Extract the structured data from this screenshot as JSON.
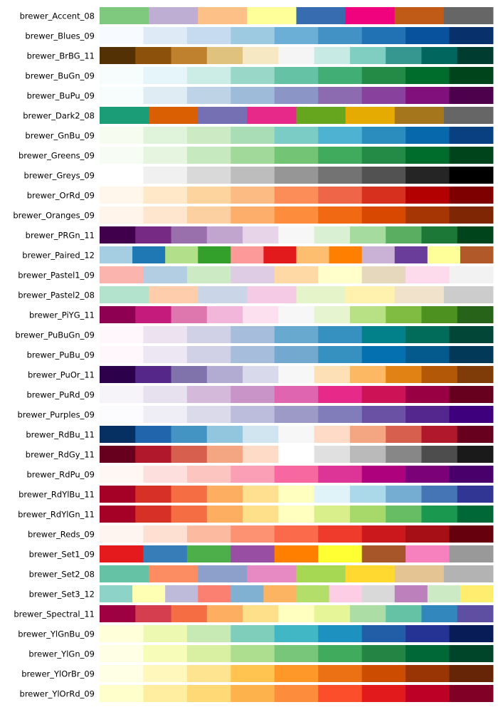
{
  "palettes": [
    {
      "name": "brewer_Accent_08",
      "colors": [
        "#7fc97f",
        "#beaed4",
        "#fdc086",
        "#ffff99",
        "#386cb0",
        "#f0027f",
        "#bf5b17",
        "#666666"
      ]
    },
    {
      "name": "brewer_Blues_09",
      "colors": [
        "#f7fbff",
        "#deebf7",
        "#c6dbef",
        "#9ecae1",
        "#6baed6",
        "#4292c6",
        "#2171b5",
        "#08519c",
        "#08306b"
      ]
    },
    {
      "name": "brewer_BrBG_11",
      "colors": [
        "#543005",
        "#8c510a",
        "#bf812d",
        "#dfc27d",
        "#f6e8c3",
        "#f5f5f5",
        "#c7eae5",
        "#80cdc1",
        "#35978f",
        "#01665e",
        "#003c30"
      ]
    },
    {
      "name": "brewer_BuGn_09",
      "colors": [
        "#f7fcfd",
        "#e5f5f9",
        "#ccece6",
        "#99d8c9",
        "#66c2a4",
        "#41ae76",
        "#238b45",
        "#006d2c",
        "#00441b"
      ]
    },
    {
      "name": "brewer_BuPu_09",
      "colors": [
        "#f7fcfd",
        "#e0ecf4",
        "#bfd3e6",
        "#9ebcda",
        "#8c96c6",
        "#8c6bb1",
        "#88419d",
        "#810f7c",
        "#4d004b"
      ]
    },
    {
      "name": "brewer_Dark2_08",
      "colors": [
        "#1b9e77",
        "#d95f02",
        "#7570b3",
        "#e7298a",
        "#66a61e",
        "#e6ab02",
        "#a6761d",
        "#666666"
      ]
    },
    {
      "name": "brewer_GnBu_09",
      "colors": [
        "#f7fcf0",
        "#e0f3db",
        "#ccebc5",
        "#a8ddb5",
        "#7bccc4",
        "#4eb3d3",
        "#2b8cbe",
        "#0868ac",
        "#084081"
      ]
    },
    {
      "name": "brewer_Greens_09",
      "colors": [
        "#f7fcf5",
        "#e5f5e0",
        "#c7e9c0",
        "#a1d99b",
        "#74c476",
        "#41ab5d",
        "#238b45",
        "#006d2c",
        "#00441b"
      ]
    },
    {
      "name": "brewer_Greys_09",
      "colors": [
        "#ffffff",
        "#f0f0f0",
        "#d9d9d9",
        "#bdbdbd",
        "#969696",
        "#737373",
        "#525252",
        "#252525",
        "#000000"
      ]
    },
    {
      "name": "brewer_OrRd_09",
      "colors": [
        "#fff7ec",
        "#fee8c8",
        "#fdd49e",
        "#fdbb84",
        "#fc8d59",
        "#ef6548",
        "#d7301f",
        "#b30000",
        "#7f0000"
      ]
    },
    {
      "name": "brewer_Oranges_09",
      "colors": [
        "#fff5eb",
        "#fee6ce",
        "#fdd0a2",
        "#fdae6b",
        "#fd8d3c",
        "#f16913",
        "#d94801",
        "#a63603",
        "#7f2704"
      ]
    },
    {
      "name": "brewer_PRGn_11",
      "colors": [
        "#40004b",
        "#762a83",
        "#9970ab",
        "#c2a5cf",
        "#e7d4e8",
        "#f7f7f7",
        "#d9f0d3",
        "#a6dba0",
        "#5aae61",
        "#1b7837",
        "#00441b"
      ]
    },
    {
      "name": "brewer_Paired_12",
      "colors": [
        "#a6cee3",
        "#1f78b4",
        "#b2df8a",
        "#33a02c",
        "#fb9a99",
        "#e31a1c",
        "#fdbf6f",
        "#ff7f00",
        "#cab2d6",
        "#6a3d9a",
        "#ffff99",
        "#b15928"
      ]
    },
    {
      "name": "brewer_Pastel1_09",
      "colors": [
        "#fbb4ae",
        "#b3cde3",
        "#ccebc5",
        "#decbe4",
        "#fed9a6",
        "#ffffcc",
        "#e5d8bd",
        "#fddaec",
        "#f2f2f2"
      ]
    },
    {
      "name": "brewer_Pastel2_08",
      "colors": [
        "#b3e2cd",
        "#fdcdac",
        "#cbd5e8",
        "#f4cae4",
        "#e6f5c9",
        "#fff2ae",
        "#f1e2cc",
        "#cccccc"
      ]
    },
    {
      "name": "brewer_PiYG_11",
      "colors": [
        "#8e0152",
        "#c51b7d",
        "#de77ae",
        "#f1b6da",
        "#fde0ef",
        "#f7f7f7",
        "#e6f5d0",
        "#b8e186",
        "#7fbc41",
        "#4d9221",
        "#276419"
      ]
    },
    {
      "name": "brewer_PuBuGn_09",
      "colors": [
        "#fff7fb",
        "#ece2f0",
        "#d0d1e6",
        "#a6bddb",
        "#67a9cf",
        "#3690c0",
        "#02818a",
        "#016c59",
        "#014636"
      ]
    },
    {
      "name": "brewer_PuBu_09",
      "colors": [
        "#fff7fb",
        "#ece7f2",
        "#d0d1e6",
        "#a6bddb",
        "#74a9cf",
        "#3690c0",
        "#0570b0",
        "#045a8d",
        "#023858"
      ]
    },
    {
      "name": "brewer_PuOr_11",
      "colors": [
        "#2d004b",
        "#542788",
        "#8073ac",
        "#b2abd2",
        "#d8daeb",
        "#f7f7f7",
        "#fee0b6",
        "#fdb863",
        "#e08214",
        "#b35806",
        "#7f3b08"
      ]
    },
    {
      "name": "brewer_PuRd_09",
      "colors": [
        "#f7f4f9",
        "#e7e1ef",
        "#d4b9da",
        "#c994c7",
        "#df65b0",
        "#e7298a",
        "#ce1256",
        "#980043",
        "#67001f"
      ]
    },
    {
      "name": "brewer_Purples_09",
      "colors": [
        "#fcfbfd",
        "#efedf5",
        "#dadaeb",
        "#bcbddc",
        "#9e9ac8",
        "#807dba",
        "#6a51a3",
        "#54278f",
        "#3f007d"
      ]
    },
    {
      "name": "brewer_RdBu_11",
      "colors": [
        "#053061",
        "#2166ac",
        "#4393c3",
        "#92c5de",
        "#d1e5f0",
        "#f7f7f7",
        "#fddbc7",
        "#f4a582",
        "#d6604d",
        "#b2182b",
        "#67001f"
      ]
    },
    {
      "name": "brewer_RdGy_11",
      "colors": [
        "#67001f",
        "#b2182b",
        "#d6604d",
        "#f4a582",
        "#fddbc7",
        "#ffffff",
        "#e0e0e0",
        "#bababa",
        "#878787",
        "#4d4d4d",
        "#1a1a1a"
      ]
    },
    {
      "name": "brewer_RdPu_09",
      "colors": [
        "#fff7f3",
        "#fde0dd",
        "#fcc5c0",
        "#fa9fb5",
        "#f768a1",
        "#dd3497",
        "#ae017e",
        "#7a0177",
        "#49006a"
      ]
    },
    {
      "name": "brewer_RdYlBu_11",
      "colors": [
        "#a50026",
        "#d73027",
        "#f46d43",
        "#fdae61",
        "#fee090",
        "#ffffbf",
        "#e0f3f8",
        "#abd9e9",
        "#74add1",
        "#4575b4",
        "#313695"
      ]
    },
    {
      "name": "brewer_RdYlGn_11",
      "colors": [
        "#a50026",
        "#d73027",
        "#f46d43",
        "#fdae61",
        "#fee08b",
        "#ffffbf",
        "#d9ef8b",
        "#a6d96a",
        "#66bd63",
        "#1a9850",
        "#006837"
      ]
    },
    {
      "name": "brewer_Reds_09",
      "colors": [
        "#fff5f0",
        "#fee0d2",
        "#fcbba1",
        "#fc9272",
        "#fb6a4a",
        "#ef3b2c",
        "#cb181d",
        "#a50f15",
        "#67000d"
      ]
    },
    {
      "name": "brewer_Set1_09",
      "colors": [
        "#e41a1c",
        "#377eb8",
        "#4daf4a",
        "#984ea3",
        "#ff7f00",
        "#ffff33",
        "#a65628",
        "#f781bf",
        "#999999"
      ]
    },
    {
      "name": "brewer_Set2_08",
      "colors": [
        "#66c2a5",
        "#fc8d62",
        "#8da0cb",
        "#e78ac3",
        "#a6d854",
        "#ffd92f",
        "#e5c494",
        "#b3b3b3"
      ]
    },
    {
      "name": "brewer_Set3_12",
      "colors": [
        "#8dd3c7",
        "#ffffb3",
        "#bebada",
        "#fb8072",
        "#80b1d3",
        "#fdb462",
        "#b3de69",
        "#fccde5",
        "#d9d9d9",
        "#bc80bd",
        "#ccebc5",
        "#ffed6f"
      ]
    },
    {
      "name": "brewer_Spectral_11",
      "colors": [
        "#9e0142",
        "#d53e4f",
        "#f46d43",
        "#fdae61",
        "#fee08b",
        "#ffffbf",
        "#e6f598",
        "#abdda4",
        "#66c2a5",
        "#3288bd",
        "#5e4fa2"
      ]
    },
    {
      "name": "brewer_YlGnBu_09",
      "colors": [
        "#ffffd9",
        "#edf8b1",
        "#c7e9b4",
        "#7fcdbb",
        "#41b6c4",
        "#1d91c0",
        "#225ea8",
        "#253494",
        "#081d58"
      ]
    },
    {
      "name": "brewer_YlGn_09",
      "colors": [
        "#ffffe5",
        "#f7fcb9",
        "#d9f0a3",
        "#addd8e",
        "#78c679",
        "#41ab5d",
        "#238443",
        "#006837",
        "#004529"
      ]
    },
    {
      "name": "brewer_YlOrBr_09",
      "colors": [
        "#ffffe5",
        "#fff7bc",
        "#fee391",
        "#fec44f",
        "#fe9929",
        "#ec7014",
        "#cc4c02",
        "#993404",
        "#662506"
      ]
    },
    {
      "name": "brewer_YlOrRd_09",
      "colors": [
        "#ffffcc",
        "#ffeda0",
        "#fed976",
        "#feb24c",
        "#fd8d3c",
        "#fc4e2a",
        "#e31a1c",
        "#bd0026",
        "#800026"
      ]
    }
  ]
}
